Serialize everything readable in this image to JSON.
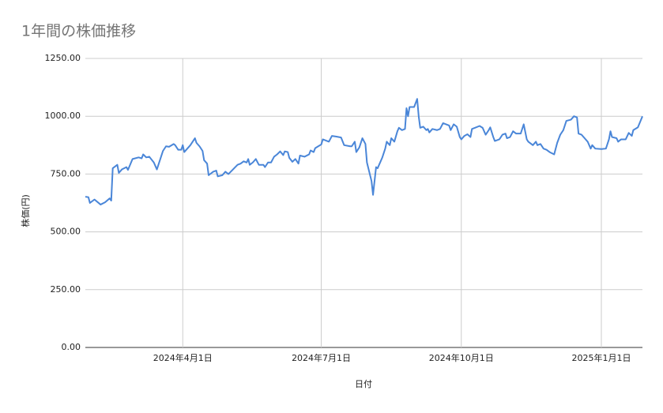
{
  "chart_data": {
    "type": "line",
    "title": "1年間の株価推移",
    "x_label": "日付",
    "y_label": "株価(円)",
    "color": "#4a86d8",
    "grid": true,
    "xlim": [
      "2024-01-28",
      "2025-01-28"
    ],
    "xticks": [
      {
        "value": "2024-04-01",
        "label": "2024年4月1日"
      },
      {
        "value": "2024-07-01",
        "label": "2024年7月1日"
      },
      {
        "value": "2024-10-01",
        "label": "2024年10月1日"
      },
      {
        "value": "2025-01-01",
        "label": "2025年1月1日"
      }
    ],
    "ylim": [
      0,
      1250
    ],
    "yticks": [
      {
        "value": 0,
        "label": "0.00"
      },
      {
        "value": 250,
        "label": "250.00"
      },
      {
        "value": 500,
        "label": "500.00"
      },
      {
        "value": 750,
        "label": "750.00"
      },
      {
        "value": 1000,
        "label": "1000.00"
      },
      {
        "value": 1250,
        "label": "1250.00"
      }
    ],
    "x": [
      "2024-01-28",
      "2024-01-30",
      "2024-01-31",
      "2024-02-03",
      "2024-02-07",
      "2024-02-10",
      "2024-02-13",
      "2024-02-14",
      "2024-02-15",
      "2024-02-18",
      "2024-02-19",
      "2024-02-21",
      "2024-02-24",
      "2024-02-25",
      "2024-02-28",
      "2024-03-03",
      "2024-03-05",
      "2024-03-06",
      "2024-03-08",
      "2024-03-10",
      "2024-03-13",
      "2024-03-15",
      "2024-03-17",
      "2024-03-19",
      "2024-03-21",
      "2024-03-23",
      "2024-03-26",
      "2024-03-27",
      "2024-03-29",
      "2024-03-31",
      "2024-04-01",
      "2024-04-02",
      "2024-04-04",
      "2024-04-06",
      "2024-04-09",
      "2024-04-10",
      "2024-04-12",
      "2024-04-14",
      "2024-04-15",
      "2024-04-17",
      "2024-04-18",
      "2024-04-21",
      "2024-04-23",
      "2024-04-24",
      "2024-04-27",
      "2024-04-29",
      "2024-05-01",
      "2024-05-04",
      "2024-05-07",
      "2024-05-09",
      "2024-05-11",
      "2024-05-13",
      "2024-05-14",
      "2024-05-15",
      "2024-05-17",
      "2024-05-19",
      "2024-05-21",
      "2024-05-24",
      "2024-05-25",
      "2024-05-27",
      "2024-05-29",
      "2024-05-31",
      "2024-06-02",
      "2024-06-04",
      "2024-06-06",
      "2024-06-07",
      "2024-06-09",
      "2024-06-10",
      "2024-06-12",
      "2024-06-14",
      "2024-06-16",
      "2024-06-17",
      "2024-06-20",
      "2024-06-23",
      "2024-06-24",
      "2024-06-26",
      "2024-06-27",
      "2024-06-29",
      "2024-07-01",
      "2024-07-02",
      "2024-07-06",
      "2024-07-08",
      "2024-07-11",
      "2024-07-14",
      "2024-07-16",
      "2024-07-20",
      "2024-07-21",
      "2024-07-23",
      "2024-07-24",
      "2024-07-26",
      "2024-07-28",
      "2024-07-30",
      "2024-07-31",
      "2024-08-03",
      "2024-08-04",
      "2024-08-06",
      "2024-08-07",
      "2024-08-10",
      "2024-08-12",
      "2024-08-13",
      "2024-08-15",
      "2024-08-16",
      "2024-08-18",
      "2024-08-20",
      "2024-08-21",
      "2024-08-23",
      "2024-08-25",
      "2024-08-26",
      "2024-08-27",
      "2024-08-28",
      "2024-08-31",
      "2024-09-02",
      "2024-09-03",
      "2024-09-04",
      "2024-09-06",
      "2024-09-08",
      "2024-09-09",
      "2024-09-10",
      "2024-09-12",
      "2024-09-15",
      "2024-09-17",
      "2024-09-19",
      "2024-09-21",
      "2024-09-23",
      "2024-09-24",
      "2024-09-26",
      "2024-09-28",
      "2024-09-30",
      "2024-10-01",
      "2024-10-03",
      "2024-10-05",
      "2024-10-07",
      "2024-10-08",
      "2024-10-10",
      "2024-10-13",
      "2024-10-15",
      "2024-10-17",
      "2024-10-19",
      "2024-10-20",
      "2024-10-22",
      "2024-10-23",
      "2024-10-26",
      "2024-10-28",
      "2024-10-30",
      "2024-10-31",
      "2024-11-02",
      "2024-11-04",
      "2024-11-06",
      "2024-11-09",
      "2024-11-11",
      "2024-11-13",
      "2024-11-14",
      "2024-11-17",
      "2024-11-19",
      "2024-11-20",
      "2024-11-22",
      "2024-11-24",
      "2024-11-26",
      "2024-11-28",
      "2024-12-01",
      "2024-12-03",
      "2024-12-05",
      "2024-12-07",
      "2024-12-09",
      "2024-12-12",
      "2024-12-14",
      "2024-12-16",
      "2024-12-17",
      "2024-12-19",
      "2024-12-21",
      "2024-12-23",
      "2024-12-25",
      "2024-12-26",
      "2024-12-28",
      "2025-01-01",
      "2025-01-04",
      "2025-01-06",
      "2025-01-07",
      "2025-01-08",
      "2025-01-11",
      "2025-01-12",
      "2025-01-14",
      "2025-01-17",
      "2025-01-19",
      "2025-01-21",
      "2025-01-22",
      "2025-01-25",
      "2025-01-28"
    ],
    "values": [
      652,
      650,
      625,
      640,
      618,
      628,
      645,
      635,
      775,
      790,
      755,
      770,
      780,
      768,
      815,
      822,
      818,
      835,
      822,
      825,
      800,
      770,
      810,
      850,
      870,
      868,
      880,
      875,
      855,
      855,
      875,
      845,
      860,
      875,
      905,
      885,
      870,
      850,
      810,
      795,
      745,
      760,
      765,
      740,
      745,
      760,
      750,
      770,
      790,
      795,
      805,
      800,
      815,
      790,
      800,
      815,
      790,
      790,
      780,
      800,
      800,
      825,
      835,
      848,
      832,
      848,
      845,
      820,
      803,
      815,
      795,
      830,
      825,
      835,
      852,
      845,
      862,
      870,
      878,
      900,
      890,
      915,
      912,
      908,
      875,
      870,
      870,
      890,
      845,
      865,
      905,
      880,
      800,
      720,
      660,
      780,
      775,
      820,
      860,
      890,
      875,
      905,
      890,
      935,
      950,
      940,
      945,
      1035,
      1000,
      1040,
      1040,
      1075,
      1000,
      950,
      955,
      940,
      945,
      930,
      945,
      940,
      945,
      970,
      965,
      960,
      940,
      965,
      955,
      910,
      900,
      915,
      922,
      910,
      945,
      950,
      958,
      950,
      920,
      940,
      952,
      910,
      893,
      900,
      920,
      925,
      905,
      910,
      935,
      925,
      925,
      965,
      900,
      890,
      875,
      890,
      875,
      880,
      860,
      855,
      845,
      835,
      885,
      920,
      940,
      980,
      985,
      1000,
      995,
      925,
      920,
      905,
      890,
      860,
      875,
      860,
      858,
      860,
      900,
      935,
      910,
      905,
      890,
      900,
      900,
      928,
      915,
      940,
      952,
      1000
    ]
  }
}
